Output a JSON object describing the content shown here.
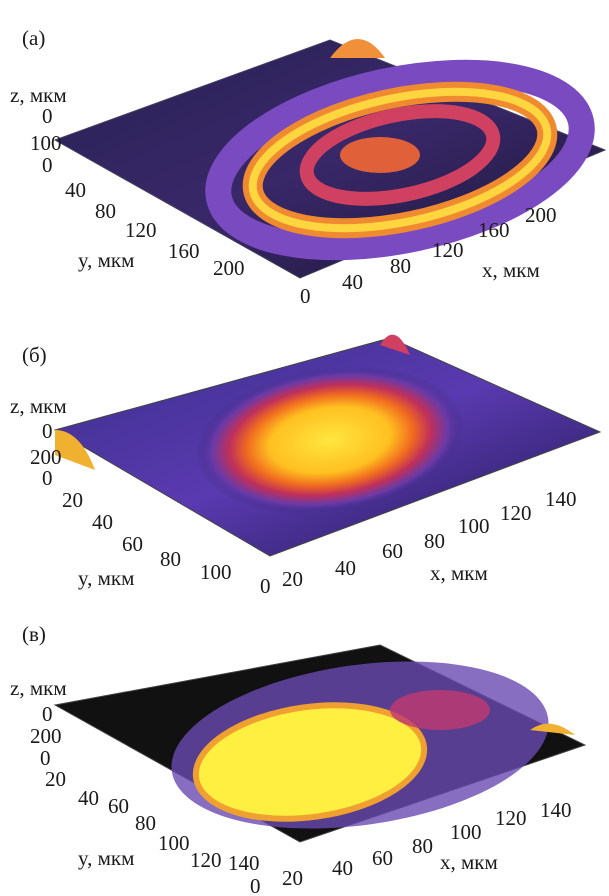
{
  "panels": [
    {
      "label": "(а)",
      "z_axis_label": "z, мкм",
      "z_ticks": [
        0,
        100
      ],
      "y_axis_label": "y, мкм",
      "y_ticks": [
        0,
        40,
        80,
        120,
        160,
        200
      ],
      "x_axis_label": "x, мкм",
      "x_ticks": [
        0,
        40,
        80,
        120,
        160,
        200
      ]
    },
    {
      "label": "(б)",
      "z_axis_label": "z, мкм",
      "z_ticks": [
        0,
        200
      ],
      "y_axis_label": "y, мкм",
      "y_ticks": [
        0,
        20,
        40,
        60,
        80,
        100
      ],
      "x_axis_label": "x, мкм",
      "x_ticks": [
        0,
        20,
        40,
        60,
        80,
        100,
        120,
        140
      ]
    },
    {
      "label": "(в)",
      "z_axis_label": "z, мкм",
      "z_ticks": [
        0,
        200
      ],
      "y_axis_label": "y, мкм",
      "y_ticks": [
        0,
        20,
        40,
        60,
        80,
        100,
        120,
        140
      ],
      "x_axis_label": "x, мкм",
      "x_ticks": [
        0,
        20,
        40,
        60,
        80,
        100,
        120,
        140
      ]
    }
  ]
}
